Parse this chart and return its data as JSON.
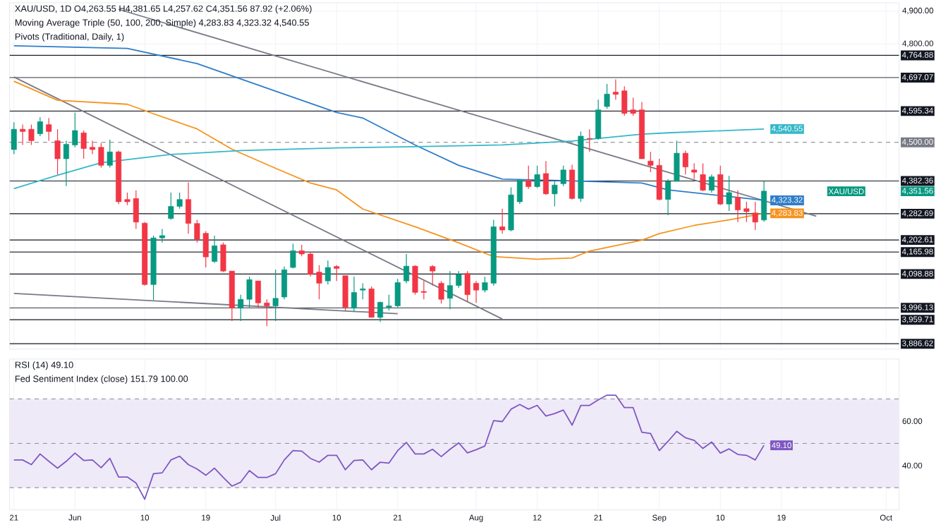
{
  "chart_data": [
    {
      "type": "candlestick",
      "title": "XAU/USD, 1D O4,263.55 H4,381.65 L4,257.62 C4,351.56 87.92 (+2.06%)",
      "categories": [
        null,
        null,
        null,
        null,
        null,
        null,
        null,
        null,
        null,
        null,
        null,
        null,
        null,
        null,
        null,
        null,
        null,
        null,
        null,
        null,
        null,
        null,
        null,
        null,
        null,
        null,
        null,
        null,
        null,
        null,
        null,
        null,
        null,
        null,
        null,
        null,
        null,
        null,
        null,
        null,
        null,
        null,
        null,
        null,
        null,
        null,
        null,
        null,
        null,
        null,
        null,
        null,
        null,
        null,
        null,
        null,
        null,
        null,
        null,
        null,
        null,
        null,
        null,
        null,
        null,
        null,
        null,
        null,
        null,
        null,
        null,
        null,
        null,
        null,
        null,
        null,
        null,
        null,
        null,
        null,
        null,
        null,
        null,
        null,
        null,
        null,
        null,
        null,
        null,
        null,
        null,
        null,
        null,
        null,
        null,
        null,
        null,
        null,
        null,
        null,
        null,
        null
      ],
      "ohlc": [
        [
          4478,
          4561,
          4464,
          4540
        ],
        [
          4540,
          4554,
          4492,
          4533
        ],
        [
          4540,
          4554,
          4492,
          4505
        ],
        [
          4526,
          4577,
          4519,
          4563
        ],
        [
          4554,
          4574,
          4505,
          4533
        ],
        [
          4505,
          4540,
          4402,
          4450
        ],
        [
          4450,
          4505,
          4367,
          4494
        ],
        [
          4492,
          4591,
          4485,
          4536
        ],
        [
          4529,
          4536,
          4450,
          4481
        ],
        [
          4485,
          4505,
          4464,
          4478
        ],
        [
          4485,
          4498,
          4423,
          4430
        ],
        [
          4430,
          4508,
          4423,
          4471
        ],
        [
          4471,
          4475,
          4312,
          4319
        ],
        [
          4326,
          4347,
          4309,
          4319
        ],
        [
          4329,
          4354,
          4236,
          4257
        ],
        [
          4254,
          4257,
          4064,
          4067
        ],
        [
          4067,
          4216,
          4020,
          4209
        ],
        [
          4209,
          4236,
          4195,
          4216
        ],
        [
          4268,
          4347,
          4264,
          4305
        ],
        [
          4305,
          4347,
          4298,
          4326
        ],
        [
          4326,
          4378,
          4222,
          4253
        ],
        [
          4253,
          4264,
          4195,
          4205
        ],
        [
          4223,
          4229,
          4119,
          4151
        ],
        [
          4137,
          4216,
          4133,
          4185
        ],
        [
          4188,
          4195,
          4105,
          4108
        ],
        [
          4108,
          4108,
          3956,
          3995
        ],
        [
          3995,
          4036,
          3956,
          4022
        ],
        [
          4022,
          4091,
          3995,
          4082
        ],
        [
          4078,
          4078,
          3995,
          4011
        ],
        [
          4011,
          4022,
          3940,
          4002
        ],
        [
          4002,
          4112,
          3956,
          4025
        ],
        [
          4029,
          4122,
          4022,
          4112
        ],
        [
          4119,
          4191,
          4116,
          4170
        ],
        [
          4170,
          4188,
          4153,
          4160
        ],
        [
          4160,
          4167,
          4091,
          4098
        ],
        [
          4105,
          4126,
          4022,
          4071
        ],
        [
          4078,
          4140,
          4067,
          4119
        ],
        [
          4122,
          4126,
          4078,
          4116
        ],
        [
          4094,
          4094,
          3988,
          3998
        ],
        [
          3995,
          4091,
          3984,
          4043
        ],
        [
          4050,
          4071,
          4022,
          4054
        ],
        [
          4054,
          4061,
          3967,
          3967
        ],
        [
          3967,
          4015,
          3953,
          4013
        ],
        [
          3998,
          4036,
          3988,
          4002
        ],
        [
          4002,
          4084,
          3998,
          4073
        ],
        [
          4078,
          4160,
          4071,
          4123
        ],
        [
          4123,
          4126,
          4036,
          4043
        ],
        [
          4046,
          4078,
          4022,
          4043
        ],
        [
          4122,
          4126,
          4064,
          4108
        ],
        [
          4071,
          4078,
          4009,
          4022
        ],
        [
          4025,
          4108,
          3992,
          4064
        ],
        [
          4064,
          4108,
          4057,
          4098
        ],
        [
          4101,
          4108,
          4015,
          4036
        ],
        [
          4071,
          4078,
          4011,
          4050
        ],
        [
          4050,
          4091,
          4043,
          4073
        ],
        [
          4071,
          4264,
          4064,
          4243
        ],
        [
          4243,
          4298,
          4222,
          4233
        ],
        [
          4233,
          4363,
          4229,
          4340
        ],
        [
          4319,
          4385,
          4312,
          4385
        ],
        [
          4384,
          4429,
          4358,
          4365
        ],
        [
          4365,
          4429,
          4361,
          4402
        ],
        [
          4405,
          4443,
          4340,
          4343
        ],
        [
          4343,
          4381,
          4305,
          4370
        ],
        [
          4374,
          4429,
          4367,
          4416
        ],
        [
          4416,
          4432,
          4326,
          4329
        ],
        [
          4329,
          4533,
          4319,
          4519
        ],
        [
          4512,
          4540,
          4471,
          4510
        ],
        [
          4512,
          4630,
          4508,
          4599
        ],
        [
          4609,
          4678,
          4602,
          4647
        ],
        [
          4653,
          4692,
          4630,
          4646
        ],
        [
          4657,
          4671,
          4581,
          4588
        ],
        [
          4599,
          4636,
          4581,
          4588
        ],
        [
          4599,
          4623,
          4450,
          4450
        ],
        [
          4443,
          4471,
          4409,
          4430
        ],
        [
          4430,
          4450,
          4323,
          4326
        ],
        [
          4326,
          4388,
          4278,
          4381
        ],
        [
          4381,
          4505,
          4381,
          4467
        ],
        [
          4467,
          4475,
          4402,
          4425
        ],
        [
          4416,
          4436,
          4388,
          4409
        ],
        [
          4402,
          4436,
          4351,
          4354
        ],
        [
          4354,
          4402,
          4347,
          4395
        ],
        [
          4402,
          4429,
          4309,
          4312
        ],
        [
          4312,
          4398,
          4291,
          4347
        ],
        [
          4333,
          4354,
          4257,
          4294
        ],
        [
          4298,
          4319,
          4257,
          4289
        ],
        [
          4285,
          4319,
          4233,
          4257
        ],
        [
          4263.55,
          4381.65,
          4257.62,
          4351.56
        ],
        null,
        null,
        null,
        null,
        null,
        null,
        null,
        null,
        null,
        null,
        null,
        null,
        null,
        null,
        null
      ],
      "series": [
        {
          "type": "line",
          "color": "#787b86",
          "values": [
            null,
            null,
            null,
            null,
            null,
            null,
            null,
            null,
            null,
            null,
            null,
            null,
            4905,
            null,
            null,
            null,
            null,
            null,
            null,
            null,
            null,
            null,
            null,
            null,
            null,
            null,
            null,
            null,
            null,
            null,
            null,
            null,
            null,
            null,
            null,
            null,
            null,
            null,
            null,
            null,
            null,
            null,
            null,
            null,
            null,
            null,
            null,
            null,
            null,
            null,
            null,
            null,
            null,
            null,
            null,
            null,
            null,
            null,
            null,
            null,
            null,
            null,
            null,
            null,
            null,
            null,
            null,
            null,
            null,
            null,
            null,
            null,
            null,
            null,
            null,
            null,
            null,
            null,
            null,
            null,
            null,
            null,
            null,
            null,
            null,
            null,
            null,
            null,
            null,
            null,
            null,
            null,
            4275,
            null,
            null,
            null,
            null,
            null,
            null,
            null,
            null,
            null
          ]
        },
        {
          "type": "line",
          "color": "#787b86",
          "values": [
            4699,
            null,
            null,
            null,
            null,
            null,
            null,
            null,
            null,
            null,
            null,
            null,
            null,
            null,
            null,
            null,
            null,
            null,
            null,
            null,
            null,
            null,
            null,
            null,
            null,
            null,
            null,
            null,
            null,
            null,
            null,
            null,
            null,
            null,
            null,
            null,
            null,
            null,
            null,
            null,
            null,
            null,
            null,
            null,
            null,
            null,
            null,
            null,
            null,
            null,
            null,
            null,
            null,
            null,
            null,
            null,
            3962,
            null,
            null,
            null,
            null,
            null,
            null,
            null,
            null,
            null,
            null,
            null,
            null,
            null,
            null,
            null,
            null,
            null,
            null,
            null,
            null,
            null,
            null,
            null,
            null,
            null,
            null,
            null,
            null,
            null,
            null,
            null,
            null,
            null,
            null,
            null,
            null,
            null,
            null,
            null,
            null,
            null,
            null,
            null,
            null,
            null
          ]
        },
        {
          "type": "line",
          "color": "#787b86",
          "values": [
            4040,
            null,
            null,
            null,
            null,
            null,
            null,
            null,
            null,
            null,
            null,
            null,
            null,
            null,
            null,
            null,
            null,
            null,
            null,
            null,
            null,
            null,
            null,
            null,
            null,
            null,
            null,
            null,
            null,
            null,
            null,
            null,
            null,
            null,
            null,
            null,
            null,
            null,
            null,
            null,
            null,
            null,
            null,
            null,
            3978,
            null,
            null,
            null,
            null,
            null,
            null,
            null,
            null,
            null,
            null,
            null,
            null,
            null,
            null,
            null,
            null,
            null,
            null,
            null,
            null,
            null,
            null,
            null,
            null,
            null,
            null,
            null,
            null,
            null,
            null,
            null,
            null,
            null,
            null,
            null,
            null,
            null,
            null,
            null,
            null,
            null,
            null,
            null,
            null,
            null,
            null,
            null,
            null,
            null,
            null,
            null,
            null,
            null,
            null,
            null,
            null,
            null
          ]
        },
        {
          "type": "line",
          "color": "#f7931e",
          "values": [
            4686,
            null,
            null,
            null,
            null,
            4628,
            null,
            null,
            null,
            null,
            null,
            null,
            null,
            4616,
            null,
            null,
            4587,
            null,
            null,
            null,
            null,
            4541,
            null,
            null,
            null,
            4479,
            null,
            null,
            null,
            null,
            4421,
            null,
            null,
            null,
            4376,
            null,
            null,
            4355,
            null,
            null,
            4297,
            null,
            null,
            null,
            null,
            null,
            4243,
            null,
            null,
            null,
            null,
            4194,
            null,
            null,
            null,
            4152,
            null,
            null,
            null,
            null,
            4144,
            null,
            null,
            null,
            4148,
            null,
            4169,
            null,
            null,
            null,
            null,
            null,
            4202,
            null,
            4222,
            null,
            null,
            null,
            4247,
            null,
            null,
            null,
            4264,
            null,
            null,
            null,
            4283.83,
            null,
            null,
            null,
            null,
            null,
            null,
            null,
            null,
            null,
            null,
            null,
            null,
            null,
            null,
            null
          ],
          "value_labels": [
            null,
            null,
            null,
            null,
            null,
            null,
            null,
            null,
            null,
            null,
            null,
            null,
            null,
            null,
            null,
            null,
            null,
            null,
            null,
            null,
            null,
            null,
            null,
            null,
            null,
            null,
            null,
            null,
            null,
            null,
            null,
            null,
            null,
            null,
            null,
            null,
            null,
            null,
            null,
            null,
            null,
            null,
            null,
            null,
            null,
            null,
            null,
            null,
            null,
            null,
            null,
            null,
            null,
            null,
            null,
            null,
            null,
            null,
            null,
            null,
            null,
            null,
            null,
            null,
            null,
            null,
            null,
            null,
            null,
            null,
            null,
            null,
            null,
            null,
            null,
            null,
            null,
            null,
            null,
            null,
            null,
            null,
            null,
            null,
            null,
            null,
            "4,283.83",
            null,
            null,
            null,
            null,
            null,
            null,
            null,
            null,
            null,
            null,
            null,
            null,
            null,
            null,
            null
          ]
        },
        {
          "type": "line",
          "color": "#2e7dc9",
          "values": [
            4794,
            null,
            null,
            null,
            null,
            null,
            null,
            null,
            null,
            null,
            null,
            null,
            null,
            4786,
            null,
            null,
            null,
            null,
            null,
            null,
            null,
            4740,
            null,
            null,
            null,
            null,
            null,
            null,
            null,
            4665,
            null,
            null,
            null,
            null,
            null,
            null,
            null,
            4591,
            null,
            null,
            4574,
            null,
            null,
            null,
            null,
            null,
            4492,
            null,
            null,
            null,
            null,
            4430,
            null,
            null,
            null,
            null,
            4388,
            null,
            null,
            null,
            null,
            null,
            4384,
            null,
            null,
            null,
            null,
            null,
            null,
            null,
            null,
            null,
            4376,
            null,
            null,
            4355,
            null,
            null,
            null,
            null,
            null,
            4338,
            null,
            null,
            null,
            null,
            4323.32,
            null,
            null,
            null,
            null,
            null,
            null,
            null,
            null,
            null,
            null,
            null,
            null,
            null,
            null,
            null
          ],
          "value_labels": [
            null,
            null,
            null,
            null,
            null,
            null,
            null,
            null,
            null,
            null,
            null,
            null,
            null,
            null,
            null,
            null,
            null,
            null,
            null,
            null,
            null,
            null,
            null,
            null,
            null,
            null,
            null,
            null,
            null,
            null,
            null,
            null,
            null,
            null,
            null,
            null,
            null,
            null,
            null,
            null,
            null,
            null,
            null,
            null,
            null,
            null,
            null,
            null,
            null,
            null,
            null,
            null,
            null,
            null,
            null,
            null,
            null,
            null,
            null,
            null,
            null,
            null,
            null,
            null,
            null,
            null,
            null,
            null,
            null,
            null,
            null,
            null,
            null,
            null,
            null,
            null,
            null,
            null,
            null,
            null,
            null,
            null,
            null,
            null,
            null,
            null,
            "4,323.32",
            null,
            null,
            null,
            null,
            null,
            null,
            null,
            null,
            null,
            null,
            null,
            null,
            null,
            null,
            null
          ]
        },
        {
          "type": "line",
          "color": "#35b8c9",
          "values": [
            4359,
            null,
            null,
            null,
            null,
            4400,
            null,
            null,
            null,
            null,
            4438,
            null,
            null,
            null,
            null,
            null,
            null,
            null,
            4463,
            null,
            null,
            null,
            null,
            null,
            null,
            null,
            4475,
            null,
            null,
            null,
            null,
            null,
            null,
            null,
            null,
            null,
            null,
            4483,
            null,
            null,
            null,
            null,
            null,
            null,
            null,
            null,
            4487,
            null,
            null,
            null,
            null,
            null,
            null,
            null,
            null,
            null,
            4492,
            null,
            null,
            null,
            null,
            null,
            null,
            null,
            4504,
            null,
            null,
            null,
            null,
            null,
            null,
            null,
            4525,
            null,
            null,
            4529,
            null,
            null,
            null,
            null,
            null,
            null,
            null,
            null,
            null,
            null,
            4540.55,
            null,
            null,
            null,
            null,
            null,
            null,
            null,
            null,
            null,
            null,
            null,
            null,
            null,
            null,
            null
          ],
          "value_labels": [
            null,
            null,
            null,
            null,
            null,
            null,
            null,
            null,
            null,
            null,
            null,
            null,
            null,
            null,
            null,
            null,
            null,
            null,
            null,
            null,
            null,
            null,
            null,
            null,
            null,
            null,
            null,
            null,
            null,
            null,
            null,
            null,
            null,
            null,
            null,
            null,
            null,
            null,
            null,
            null,
            null,
            null,
            null,
            null,
            null,
            null,
            null,
            null,
            null,
            null,
            null,
            null,
            null,
            null,
            null,
            null,
            null,
            null,
            null,
            null,
            null,
            null,
            null,
            null,
            null,
            null,
            null,
            null,
            null,
            null,
            null,
            null,
            null,
            null,
            null,
            null,
            null,
            null,
            null,
            null,
            null,
            null,
            null,
            null,
            null,
            null,
            "4,540.55",
            null,
            null,
            null,
            null,
            null,
            null,
            null,
            null,
            null,
            null,
            null,
            null,
            null,
            null,
            null
          ]
        }
      ],
      "ylim": [
        3870,
        4925
      ],
      "yticks": [
        {
          "value": 4800,
          "label": "4,800.00"
        },
        {
          "value": 4900,
          "label": "4,900.00"
        }
      ],
      "tick_labels": "y",
      "grid": true,
      "marker": "none",
      "ref_lines": [
        {
          "axis": "y",
          "value": 4764.88,
          "label": "4,764.88",
          "color": "#131722"
        },
        {
          "axis": "y",
          "value": 4697.07,
          "label": "4,697.07",
          "color": "#131722"
        },
        {
          "axis": "y",
          "value": 4595.34,
          "label": "4,595.34",
          "color": "#131722"
        },
        {
          "axis": "y",
          "value": 4500.0,
          "label": "4,500.00",
          "color": "#787b86",
          "line_style": "dashed"
        },
        {
          "axis": "y",
          "value": 4382.36,
          "label": "4,382.36",
          "color": "#131722"
        },
        {
          "axis": "y",
          "value": 4282.69,
          "label": "4,282.69",
          "color": "#131722"
        },
        {
          "axis": "y",
          "value": 4202.61,
          "label": "4,202.61",
          "color": "#131722"
        },
        {
          "axis": "y",
          "value": 4165.98,
          "label": "4,165.98",
          "color": "#131722"
        },
        {
          "axis": "y",
          "value": 4098.88,
          "label": "4,098.88",
          "color": "#131722"
        },
        {
          "axis": "y",
          "value": 3996.13,
          "label": "3,996.13",
          "color": "#131722"
        },
        {
          "axis": "y",
          "value": 3959.71,
          "label": "3,959.71",
          "color": "#131722"
        },
        {
          "axis": "y",
          "value": 3886.62,
          "label": "3,886.62",
          "color": "#131722"
        }
      ],
      "annotations": [
        "Moving Average Triple (50, 100, 200, Simple) 4,283.83 4,323.32 4,540.55",
        "Pivots (Traditional, Daily, 1)",
        "XAU/USD"
      ],
      "value_labels": [
        null,
        null,
        null,
        null,
        null,
        null,
        null,
        null,
        null,
        null,
        null,
        null,
        null,
        null,
        null,
        null,
        null,
        null,
        null,
        null,
        null,
        null,
        null,
        null,
        null,
        null,
        null,
        null,
        null,
        null,
        null,
        null,
        null,
        null,
        null,
        null,
        null,
        null,
        null,
        null,
        null,
        null,
        null,
        null,
        null,
        null,
        null,
        null,
        null,
        null,
        null,
        null,
        null,
        null,
        null,
        null,
        null,
        null,
        null,
        null,
        null,
        null,
        null,
        null,
        null,
        null,
        null,
        null,
        null,
        null,
        null,
        null,
        null,
        null,
        null,
        null,
        null,
        null,
        null,
        null,
        null,
        null,
        null,
        null,
        null,
        null,
        "4,351.56",
        null,
        null,
        null,
        null,
        null,
        null,
        null,
        null,
        null,
        null,
        null,
        null,
        null,
        null,
        null
      ]
    },
    {
      "type": "line",
      "title": "RSI (14) 49.10",
      "color": "#7e57c2",
      "categories": [
        "21",
        null,
        null,
        null,
        null,
        null,
        null,
        "Jun",
        null,
        null,
        null,
        null,
        null,
        null,
        null,
        "10",
        null,
        null,
        null,
        null,
        null,
        null,
        "19",
        null,
        null,
        null,
        null,
        null,
        null,
        null,
        "Jul",
        null,
        null,
        null,
        null,
        null,
        null,
        "10",
        null,
        null,
        null,
        null,
        null,
        null,
        "21",
        null,
        null,
        null,
        null,
        null,
        null,
        null,
        null,
        "Aug",
        null,
        null,
        null,
        null,
        null,
        null,
        "12",
        null,
        null,
        null,
        null,
        null,
        null,
        "21",
        null,
        null,
        null,
        null,
        null,
        null,
        "Sep",
        null,
        null,
        null,
        null,
        null,
        null,
        "10",
        null,
        null,
        null,
        null,
        null,
        null,
        "19",
        null,
        null,
        null,
        null,
        null,
        null,
        null,
        null,
        null,
        null,
        null,
        "Oct",
        null
      ],
      "values": [
        42.5,
        42.5,
        40.4,
        45.2,
        41.9,
        38.8,
        41.9,
        45.6,
        42.3,
        42.5,
        39.0,
        43.2,
        34.8,
        34.8,
        32.1,
        24.8,
        36.3,
        36.7,
        42.5,
        44.2,
        40.4,
        38.4,
        35.6,
        38.8,
        34.6,
        30.7,
        32.5,
        37.7,
        34.6,
        34.6,
        36.3,
        42.5,
        46.7,
        46.5,
        43.2,
        41.5,
        44.6,
        44.6,
        38.1,
        42.3,
        42.5,
        38.1,
        41.5,
        41.1,
        46.7,
        50.4,
        45.2,
        45.2,
        47.3,
        44.0,
        47.3,
        50.2,
        45.7,
        47.1,
        48.8,
        60.2,
        59.8,
        65.4,
        67.5,
        65.4,
        67.1,
        62.3,
        63.4,
        65.0,
        58.2,
        67.1,
        67.1,
        69.6,
        71.7,
        71.7,
        66.1,
        66.1,
        55.0,
        54.4,
        46.7,
        50.9,
        55.4,
        52.5,
        51.3,
        47.7,
        50.6,
        45.6,
        47.5,
        45.0,
        44.6,
        42.5,
        49.1,
        null,
        null,
        null,
        null,
        null,
        null,
        null,
        null,
        null,
        null,
        null,
        null,
        null,
        null,
        null
      ],
      "ylim": [
        20,
        88
      ],
      "yticks": [
        {
          "value": 40,
          "label": "40.00"
        },
        {
          "value": 60,
          "label": "60.00"
        }
      ],
      "grid": true,
      "marker": "none",
      "bands": [
        {
          "axis": "y",
          "from": 30,
          "to": 70,
          "color": "#efeaf8"
        }
      ],
      "ref_lines": [
        {
          "axis": "y",
          "value": 70,
          "color": "#9598a1",
          "line_style": "dashed"
        },
        {
          "axis": "y",
          "value": 50,
          "color": "#9598a1",
          "line_style": "dashed"
        },
        {
          "axis": "y",
          "value": 30,
          "color": "#9598a1",
          "line_style": "dashed"
        }
      ],
      "annotations": [
        "Fed Sentiment Index (close) 151.79 100.00"
      ],
      "value_labels": [
        null,
        null,
        null,
        null,
        null,
        null,
        null,
        null,
        null,
        null,
        null,
        null,
        null,
        null,
        null,
        null,
        null,
        null,
        null,
        null,
        null,
        null,
        null,
        null,
        null,
        null,
        null,
        null,
        null,
        null,
        null,
        null,
        null,
        null,
        null,
        null,
        null,
        null,
        null,
        null,
        null,
        null,
        null,
        null,
        null,
        null,
        null,
        null,
        null,
        null,
        null,
        null,
        null,
        null,
        null,
        null,
        null,
        null,
        null,
        null,
        null,
        null,
        null,
        null,
        null,
        null,
        null,
        null,
        null,
        null,
        null,
        null,
        null,
        null,
        null,
        null,
        null,
        null,
        null,
        null,
        null,
        null,
        null,
        null,
        null,
        null,
        "49.10",
        null,
        null,
        null,
        null,
        null,
        null,
        null,
        null,
        null,
        null,
        null,
        null,
        null,
        null,
        null
      ]
    }
  ]
}
